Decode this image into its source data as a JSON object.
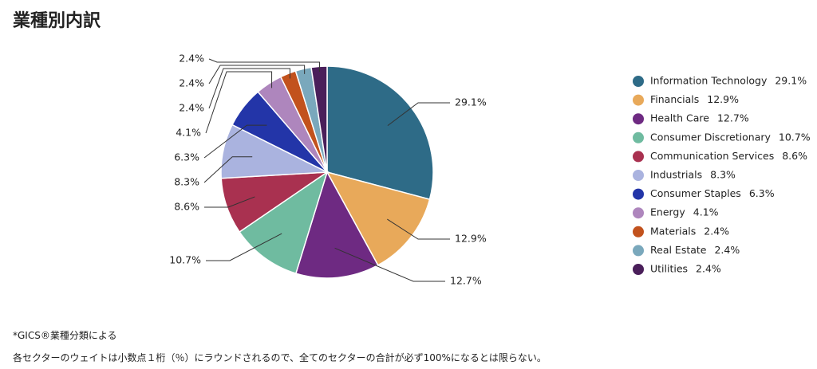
{
  "title": "業種別内訳",
  "chart_data": {
    "type": "pie",
    "categories": [
      "Information Technology",
      "Financials",
      "Health Care",
      "Consumer Discretionary",
      "Communication Services",
      "Industrials",
      "Consumer Staples",
      "Energy",
      "Materials",
      "Real Estate",
      "Utilities"
    ],
    "values": [
      29.1,
      12.9,
      12.7,
      10.7,
      8.6,
      8.3,
      6.3,
      4.1,
      2.4,
      2.4,
      2.4
    ],
    "value_labels": [
      "29.1%",
      "12.9%",
      "12.7%",
      "10.7%",
      "8.6%",
      "8.3%",
      "6.3%",
      "4.1%",
      "2.4%",
      "2.4%",
      "2.4%"
    ],
    "colors": [
      "#2e6b87",
      "#e8a95a",
      "#6e2a82",
      "#6fbba0",
      "#a93150",
      "#aab3df",
      "#2335a8",
      "#ae86bd",
      "#c2521d",
      "#7aa8bc",
      "#4a1f5a"
    ],
    "legend": "right"
  },
  "notes": [
    "*GICS®業種分類による",
    "各セクターのウェイトは小数点１桁（％）にラウンドされるので、全てのセクターの合計が必ず100%になるとは限らない。"
  ]
}
